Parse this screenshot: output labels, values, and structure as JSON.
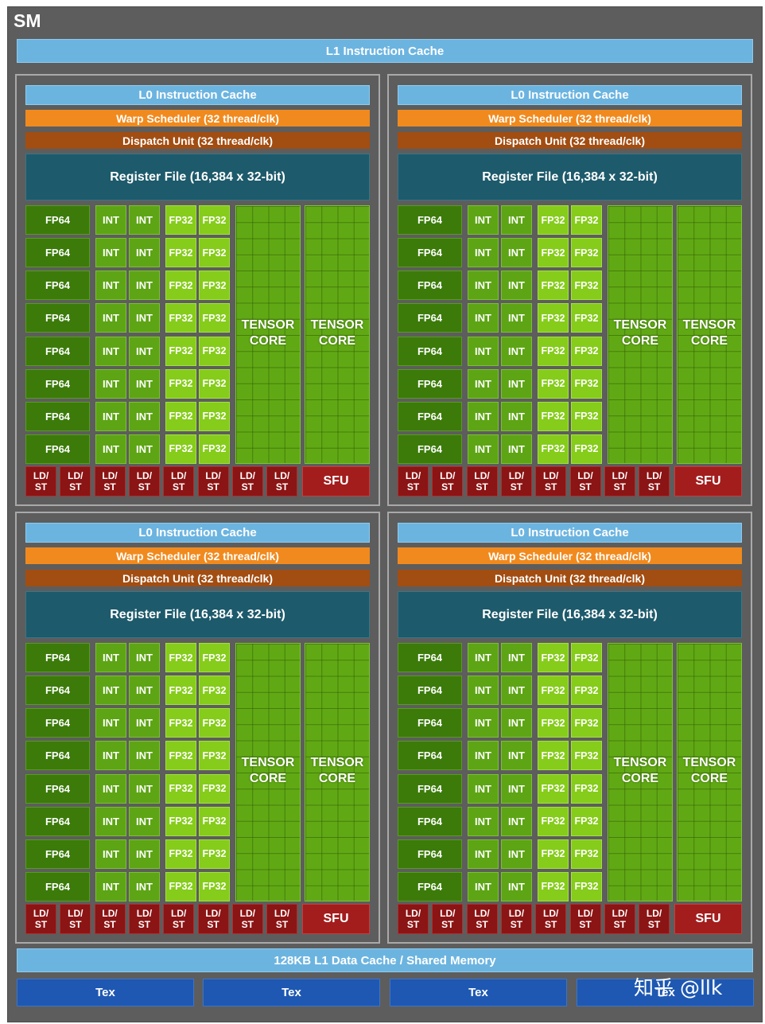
{
  "sm": {
    "title": "SM",
    "l1_instruction_cache": "L1 Instruction Cache",
    "l1_data_cache": "128KB L1 Data Cache / Shared Memory",
    "tex_units": [
      "Tex",
      "Tex",
      "Tex",
      "Tex"
    ]
  },
  "partition": {
    "l0_cache": "L0 Instruction Cache",
    "warp_scheduler": "Warp Scheduler (32 thread/clk)",
    "dispatch_unit": "Dispatch Unit (32 thread/clk)",
    "register_file": "Register File (16,384 x 32-bit)",
    "fp64_label": "FP64",
    "int_label": "INT",
    "fp32_label": "FP32",
    "tensor_line1": "TENSOR",
    "tensor_line2": "CORE",
    "ldst_line1": "LD/",
    "ldst_line2": "ST",
    "sfu_label": "SFU"
  },
  "watermark": "知乎 @llk",
  "colors": {
    "sm_background": "#5d5d5d",
    "cache_blue": "#6cb4e0",
    "warp_orange": "#f18a1e",
    "dispatch_brown": "#a24d12",
    "register_teal": "#1d5a6b",
    "fp64_green": "#3c7b0a",
    "int_green": "#5da514",
    "fp32_green": "#86cc1a",
    "ldst_red": "#8b1414",
    "tex_blue": "#1e58b2"
  }
}
